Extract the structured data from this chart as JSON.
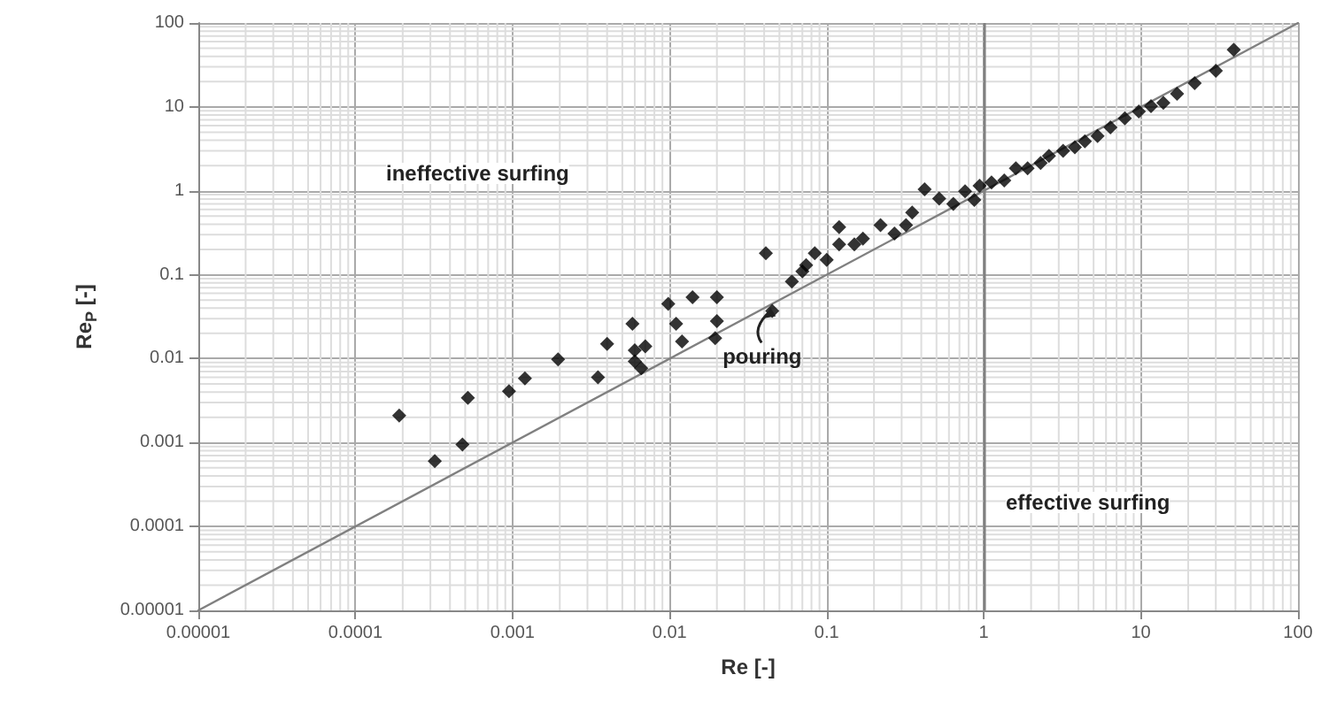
{
  "chart_data": {
    "type": "scatter",
    "xlabel": "Re [-]",
    "ylabel": "Re$_{P}$ [-]",
    "log": "xy",
    "grid": true,
    "marker": "diamond",
    "xlim": [
      1e-05,
      100
    ],
    "ylim": [
      1e-05,
      100
    ],
    "xticks": [
      {
        "value": 1e-05,
        "label": "0.00001"
      },
      0.0001,
      0.001,
      0.01,
      0.1,
      1,
      10,
      100
    ],
    "yticks": [
      {
        "value": 1e-05,
        "label": "0.00001"
      },
      0.0001,
      0.001,
      0.01,
      0.1,
      1,
      10,
      100
    ],
    "series": [
      {
        "color": "#000000",
        "x": [
          0.00019,
          0.00032,
          0.00048,
          0.00052,
          0.00095,
          0.0012,
          0.00195,
          0.0035,
          0.004,
          0.0058,
          0.006,
          0.006,
          0.0066,
          0.007,
          0.0098,
          0.011,
          0.012,
          0.014,
          0.0195,
          0.02,
          0.02,
          0.041,
          0.045,
          0.06,
          0.07,
          0.074,
          0.084,
          0.1,
          0.12,
          0.12,
          0.15,
          0.17,
          0.22,
          0.27,
          0.32,
          0.35,
          0.42,
          0.52,
          0.64,
          0.76,
          0.87,
          0.94,
          1.12,
          1.35,
          1.6,
          1.9,
          2.3,
          2.6,
          3.2,
          3.8,
          4.4,
          5.3,
          6.4,
          7.9,
          9.7,
          11.6,
          13.9,
          17,
          22,
          30,
          39
        ],
        "values": [
          0.0021,
          0.0006,
          0.00095,
          0.0034,
          0.0041,
          0.0058,
          0.0098,
          0.006,
          0.015,
          0.026,
          0.0126,
          0.0093,
          0.0077,
          0.014,
          0.045,
          0.026,
          0.016,
          0.054,
          0.0175,
          0.054,
          0.028,
          0.18,
          0.037,
          0.083,
          0.11,
          0.13,
          0.18,
          0.15,
          0.37,
          0.23,
          0.23,
          0.27,
          0.39,
          0.31,
          0.39,
          0.55,
          1.04,
          0.81,
          0.7,
          0.99,
          0.78,
          1.15,
          1.26,
          1.33,
          1.86,
          1.86,
          2.15,
          2.6,
          3.0,
          3.3,
          3.9,
          4.5,
          5.7,
          7.3,
          8.8,
          10.2,
          11.2,
          14.3,
          19.2,
          27,
          48
        ]
      },
      {
        "type": "line",
        "color": "#808080",
        "marker": "none",
        "x": [
          1e-05,
          100
        ],
        "values": [
          1e-05,
          100
        ]
      }
    ],
    "ref_lines": [
      {
        "axis": "x",
        "value": 1,
        "color": "#808080"
      }
    ],
    "annotations": [
      "ineffective surfing",
      "effective surfing",
      {
        "text": "pouring",
        "x": 0.045,
        "y": 0.045
      }
    ]
  }
}
